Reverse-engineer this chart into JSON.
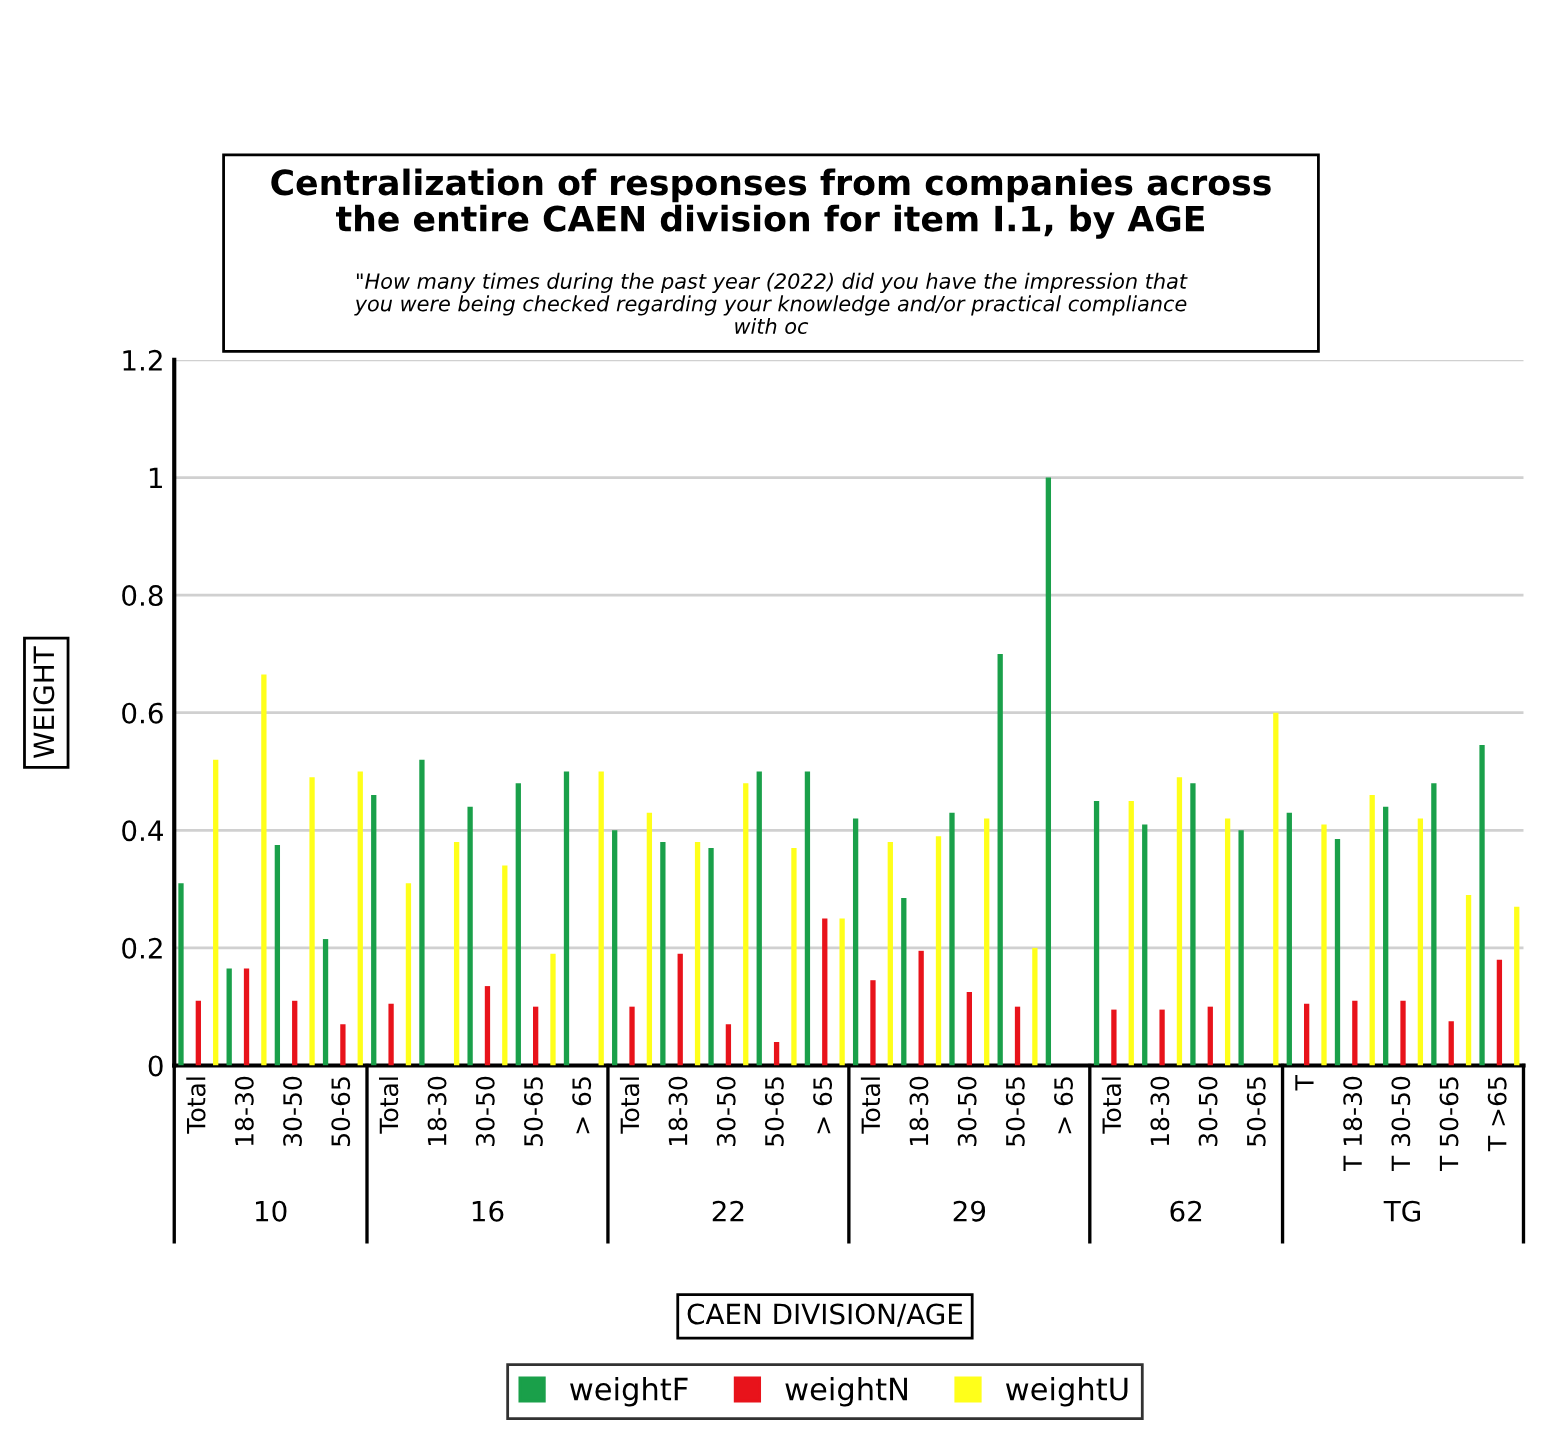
{
  "chart_data": {
    "type": "bar",
    "title": "Centralization of responses from companies across\nthe entire CAEN division for item I.1, by AGE",
    "subtitle": "\"How many times during the past year (2022) did you have the impression that\nyou were being checked regarding your knowledge and/or practical compliance\nwith oc",
    "xlabel": "CAEN DIVISION/AGE",
    "ylabel": "WEIGHT",
    "categories": [
      "Total",
      "18-30",
      "30-50",
      "50-65",
      "Total",
      "18-30",
      "30-50",
      "50-65",
      "> 65",
      "Total",
      "18-30",
      "30-50",
      "50-65",
      "> 65",
      "Total",
      "18-30",
      "30-50",
      "50-65",
      "> 65",
      "Total",
      "18-30",
      "30-50",
      "50-65",
      "T",
      "T 18-30",
      "T 30-50",
      "T 50-65",
      "T >65"
    ],
    "annotations": [
      "10",
      "16",
      "22",
      "29",
      "62",
      "TG"
    ],
    "series": [
      {
        "name": "weightF",
        "color": "#1aa04a",
        "values": [
          0.31,
          0.165,
          0.375,
          0.215,
          0.46,
          0.52,
          0.44,
          0.48,
          0.5,
          0.4,
          0.38,
          0.37,
          0.5,
          0.5,
          0.42,
          0.285,
          0.43,
          0.7,
          1.0,
          0.45,
          0.41,
          0.48,
          0.4,
          0.43,
          0.385,
          0.44,
          0.48,
          0.545
        ]
      },
      {
        "name": "weightN",
        "color": "#e8131b",
        "values": [
          0.11,
          0.165,
          0.11,
          0.07,
          0.105,
          0,
          0.135,
          0.1,
          0,
          0.1,
          0.19,
          0.07,
          0.04,
          0.25,
          0.145,
          0.195,
          0.125,
          0.1,
          0,
          0.095,
          0.095,
          0.1,
          0,
          0.105,
          0.11,
          0.11,
          0.075,
          0.18
        ]
      },
      {
        "name": "weightU",
        "color": "#ffff1a",
        "values": [
          0.52,
          0.665,
          0.49,
          0.5,
          0.31,
          0.38,
          0.34,
          0.19,
          0.5,
          0.43,
          0.38,
          0.48,
          0.37,
          0.25,
          0.38,
          0.39,
          0.42,
          0.2,
          0,
          0.45,
          0.49,
          0.42,
          0.6,
          0.41,
          0.46,
          0.42,
          0.29,
          0.27
        ]
      }
    ],
    "ylim": [
      0,
      1.2
    ],
    "yticks": [
      0,
      0.2,
      0.4,
      0.6,
      0.8,
      1,
      1.2
    ],
    "grid": "y",
    "legend": "bottom"
  }
}
